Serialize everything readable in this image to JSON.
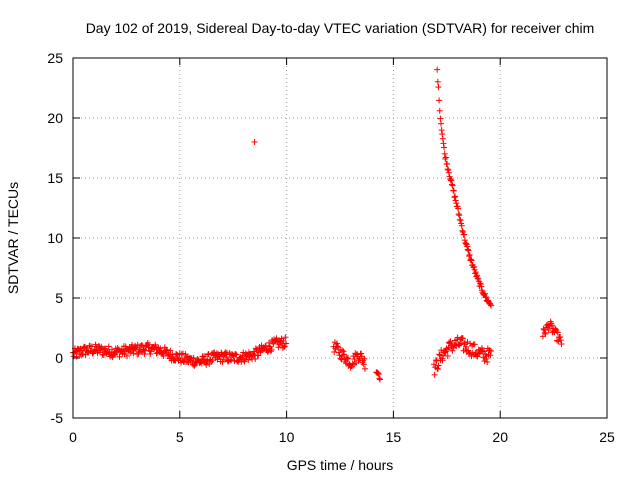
{
  "chart_data": {
    "type": "scatter",
    "title": "Day 102 of 2019, Sidereal Day-to-day VTEC variation (SDTVAR) for receiver chim",
    "xlabel": "GPS time / hours",
    "ylabel": "SDTVAR / TECUs",
    "xlim": [
      0,
      25
    ],
    "ylim": [
      -5,
      25
    ],
    "xticks": [
      0,
      5,
      10,
      15,
      20,
      25
    ],
    "yticks": [
      -5,
      0,
      5,
      10,
      15,
      20,
      25
    ],
    "grid": true,
    "marker": "+",
    "color": "#ff0000",
    "series": [
      {
        "name": "SDTVAR",
        "segments": [
          {
            "t": [
              0.0,
              0.5,
              1.0,
              1.5,
              2.0,
              2.5,
              3.0,
              3.5,
              4.0,
              4.5,
              5.0,
              5.5,
              6.0,
              6.5,
              7.0,
              7.5,
              8.0,
              8.5,
              9.0,
              9.5,
              10.0
            ],
            "y": [
              0.3,
              0.6,
              0.7,
              0.6,
              0.5,
              0.6,
              0.7,
              0.8,
              0.7,
              0.3,
              0.0,
              -0.2,
              -0.3,
              0.0,
              0.1,
              0.0,
              0.1,
              0.3,
              0.8,
              1.2,
              1.3
            ],
            "spread": 0.45
          },
          {
            "t": [
              12.2,
              12.6,
              13.0,
              13.4,
              13.7
            ],
            "y": [
              1.0,
              0.3,
              -0.4,
              0.3,
              -0.5
            ],
            "spread": 0.5
          },
          {
            "t": [
              14.2,
              14.4
            ],
            "y": [
              -1.0,
              -1.5
            ],
            "spread": 0.4
          },
          {
            "t": [
              16.9,
              17.3,
              17.7,
              18.1,
              18.5,
              18.9,
              19.3,
              19.6
            ],
            "y": [
              -1.0,
              0.3,
              1.0,
              1.2,
              0.9,
              0.5,
              0.2,
              0.3
            ],
            "spread": 0.6
          },
          {
            "t": [
              17.05,
              17.2,
              17.4,
              17.6,
              17.8,
              18.0,
              18.2,
              18.4,
              18.6,
              18.8,
              19.0,
              19.2,
              19.4,
              19.6
            ],
            "y": [
              24.0,
              20.0,
              17.0,
              15.5,
              14.0,
              12.5,
              11.0,
              9.5,
              8.3,
              7.3,
              6.3,
              5.5,
              4.8,
              4.4
            ],
            "spread": 0.2
          },
          {
            "t": [
              22.0,
              22.3,
              22.6,
              22.9
            ],
            "y": [
              2.0,
              2.8,
              2.0,
              1.2
            ],
            "spread": 0.4
          }
        ],
        "outliers": [
          [
            8.5,
            18.0
          ]
        ]
      }
    ]
  }
}
